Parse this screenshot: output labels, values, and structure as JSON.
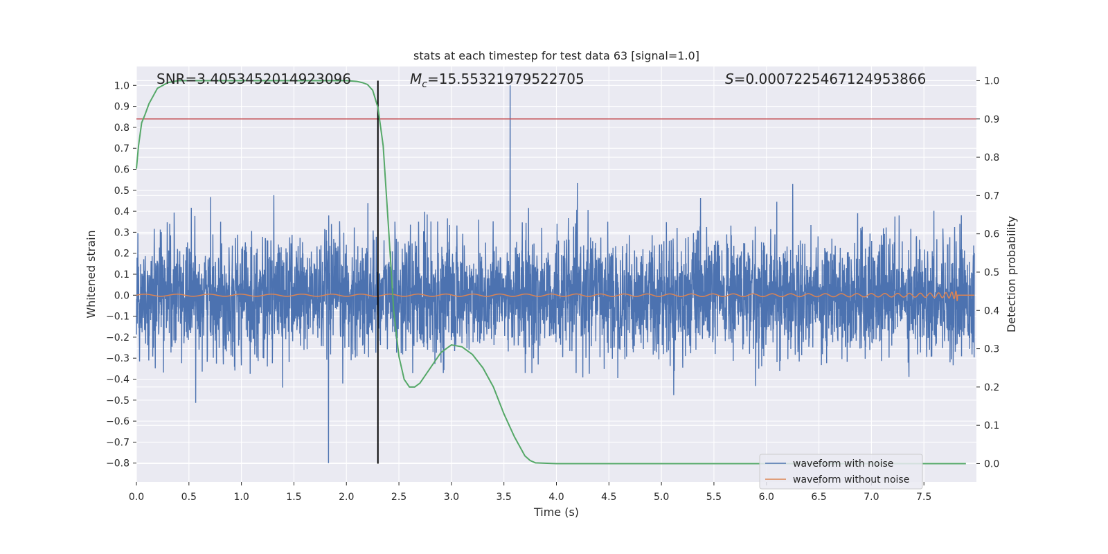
{
  "chart_data": {
    "type": "line",
    "title": "stats at each timestep for test data 63 [signal=1.0]",
    "xlabel": "Time (s)",
    "ylabel": "Whitened strain",
    "y2label": "Detection probability",
    "xlim": [
      0.0,
      8.0
    ],
    "ylim": [
      -0.89,
      1.09
    ],
    "y2lim": [
      -0.048,
      1.037
    ],
    "x_ticks": [
      "0.0",
      "0.5",
      "1.0",
      "1.5",
      "2.0",
      "2.5",
      "3.0",
      "3.5",
      "4.0",
      "4.5",
      "5.0",
      "5.5",
      "6.0",
      "6.5",
      "7.0",
      "7.5"
    ],
    "y_ticks": [
      "1.0",
      "0.9",
      "0.8",
      "0.7",
      "0.6",
      "0.5",
      "0.4",
      "0.3",
      "0.2",
      "0.1",
      "0.0",
      "−0.1",
      "−0.2",
      "−0.3",
      "−0.4",
      "−0.5",
      "−0.6",
      "−0.7",
      "−0.8"
    ],
    "y2_ticks": [
      "1.0",
      "0.9",
      "0.8",
      "0.7",
      "0.6",
      "0.5",
      "0.4",
      "0.3",
      "0.2",
      "0.1",
      "0.0"
    ],
    "annotations": {
      "snr": "SNR=3.4053452014923096",
      "mc_symbol": "M",
      "mc_sub": "c",
      "mc_value": "=15.55321979522705",
      "s_symbol": "S",
      "s_value": "=0.0007225467124953866"
    },
    "threshold_y2": 0.9,
    "vline_x": 2.3,
    "grid": true,
    "legend_position": "lower-right",
    "series": [
      {
        "name": "waveform with noise",
        "color": "#4c72b0",
        "axis": "left",
        "kind": "noise",
        "duration": 7.98,
        "peak_high": {
          "x": 3.56,
          "y": 1.0
        },
        "peak_low": {
          "x": 1.83,
          "y": -0.8
        }
      },
      {
        "name": "waveform without noise",
        "color": "#dd8452",
        "axis": "left",
        "kind": "chirp",
        "merger_x": 7.82,
        "max_amplitude": 0.2
      },
      {
        "axis": "right",
        "color": "#55a868",
        "kind": "probability",
        "x": [
          0.0,
          0.02,
          0.05,
          0.08,
          0.12,
          0.16,
          0.2,
          0.3,
          0.4,
          0.6,
          1.0,
          1.5,
          2.0,
          2.1,
          2.15,
          2.2,
          2.25,
          2.3,
          2.35,
          2.4,
          2.45,
          2.5,
          2.55,
          2.6,
          2.65,
          2.7,
          2.8,
          2.9,
          3.0,
          3.1,
          3.2,
          3.3,
          3.4,
          3.5,
          3.6,
          3.7,
          3.75,
          3.8,
          4.0,
          5.0,
          6.0,
          7.0,
          7.9
        ],
        "y": [
          0.77,
          0.83,
          0.89,
          0.91,
          0.94,
          0.96,
          0.98,
          0.995,
          1.0,
          1.0,
          1.0,
          1.0,
          1.0,
          0.998,
          0.995,
          0.99,
          0.975,
          0.93,
          0.83,
          0.62,
          0.4,
          0.28,
          0.22,
          0.2,
          0.2,
          0.21,
          0.25,
          0.29,
          0.31,
          0.305,
          0.285,
          0.25,
          0.2,
          0.13,
          0.07,
          0.02,
          0.008,
          0.002,
          0.0,
          0.0,
          0.0,
          0.0,
          0.0
        ]
      }
    ]
  },
  "colors": {
    "background": "#eaeaf2",
    "grid": "#ffffff",
    "threshold": "#c44e52",
    "vline": "#000000"
  }
}
